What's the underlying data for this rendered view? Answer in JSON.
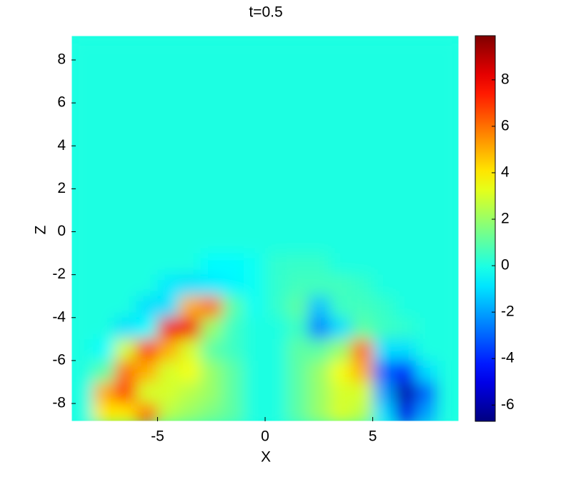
{
  "chart_data": {
    "type": "heatmap",
    "title": "t=0.5",
    "x_label": "X",
    "y_label": "Z",
    "x": [
      -8.5,
      -7.5,
      -6.5,
      -5.5,
      -4.5,
      -3.5,
      -2.5,
      -1.5,
      -0.5,
      0.5,
      1.5,
      2.5,
      3.5,
      4.5,
      5.5,
      6.5,
      7.5,
      8.5
    ],
    "y": [
      8.5,
      7.5,
      6.5,
      5.5,
      4.5,
      3.5,
      2.5,
      1.5,
      0.5,
      -0.5,
      -1.5,
      -2.5,
      -3.5,
      -4.5,
      -5.5,
      -6.5,
      -7.5,
      -8.5
    ],
    "z": [
      [
        0,
        0,
        0,
        0,
        0,
        0,
        0,
        0,
        0,
        0,
        0,
        0,
        0,
        0,
        0,
        0,
        0,
        0
      ],
      [
        0,
        0,
        0,
        0,
        0,
        0,
        0,
        0,
        0,
        0,
        0,
        0,
        0,
        0,
        0,
        0,
        0,
        0
      ],
      [
        0,
        0,
        0,
        0,
        0,
        0,
        0,
        0,
        0,
        0,
        0,
        0,
        0,
        0,
        0,
        0,
        0,
        0
      ],
      [
        0,
        0,
        0,
        0,
        0,
        0,
        0,
        0,
        0,
        0,
        0,
        0,
        0,
        0,
        0,
        0,
        0,
        0
      ],
      [
        0,
        0,
        0,
        0,
        0,
        0,
        0,
        0,
        0,
        0,
        0,
        0,
        0,
        0,
        0,
        0,
        0,
        0
      ],
      [
        0,
        0,
        0,
        0,
        0,
        0,
        0,
        0,
        0,
        0,
        0,
        0,
        0,
        0,
        0,
        0,
        0,
        0
      ],
      [
        0,
        0,
        0,
        0,
        0,
        0,
        0,
        0,
        0,
        0,
        0,
        0,
        0,
        0,
        0,
        0,
        0,
        0
      ],
      [
        0,
        0,
        0,
        0,
        0,
        0,
        0,
        0,
        0,
        0,
        0,
        0,
        0,
        0,
        0,
        0,
        0,
        0
      ],
      [
        0,
        0,
        0,
        0,
        0,
        0,
        0,
        0,
        0,
        0,
        0,
        0,
        0,
        0,
        0,
        0,
        0,
        0
      ],
      [
        0,
        0,
        0,
        0,
        0,
        0,
        0,
        0,
        0,
        0,
        0,
        0,
        0,
        0,
        0,
        0,
        0,
        0
      ],
      [
        0,
        0,
        0,
        0,
        0,
        0,
        -0.5,
        -0.5,
        -0.3,
        0.3,
        0.4,
        0.4,
        0,
        0,
        0,
        0,
        0,
        0
      ],
      [
        0,
        0,
        0,
        0,
        -0.8,
        -1,
        -0.8,
        -0.6,
        -0.3,
        0.3,
        0.6,
        0.6,
        0.6,
        0.4,
        0,
        0,
        0,
        0
      ],
      [
        0,
        0,
        0,
        -1,
        -1,
        5,
        6,
        1,
        -0.3,
        0.3,
        1,
        -1.5,
        0.5,
        0.6,
        0.4,
        0,
        0,
        0
      ],
      [
        0,
        0,
        -1,
        -0.5,
        8,
        8,
        2,
        0.5,
        0,
        0,
        0.5,
        -2.5,
        -1,
        1,
        0.5,
        0.3,
        0,
        0
      ],
      [
        0,
        -0.5,
        3,
        7,
        5,
        3,
        1,
        0.5,
        0,
        0,
        1,
        1,
        2,
        6,
        -1,
        -1,
        0,
        0
      ],
      [
        0,
        1,
        6,
        5,
        3,
        3.5,
        2,
        1,
        0,
        0,
        1,
        2,
        3.5,
        5,
        -3,
        -4,
        -1,
        0
      ],
      [
        0,
        5,
        7,
        3,
        3,
        2.5,
        2,
        1,
        0,
        0,
        1,
        2,
        3,
        3,
        -2,
        -6,
        -3,
        0
      ],
      [
        0,
        4,
        4,
        6,
        2.5,
        2,
        1.5,
        1,
        0,
        0,
        1,
        2,
        3,
        2.5,
        -1,
        -5,
        -2,
        0
      ]
    ],
    "xlim": [
      -9,
      9
    ],
    "ylim": [
      -8.83,
      9.13
    ],
    "xticks": [
      -5,
      0,
      5
    ],
    "yticks": [
      -8,
      -6,
      -4,
      -2,
      0,
      2,
      4,
      6,
      8
    ],
    "clim": [
      -6.7,
      9.9
    ],
    "cticks": [
      -6,
      -4,
      -2,
      0,
      2,
      4,
      6,
      8
    ],
    "colormap": "jet"
  }
}
